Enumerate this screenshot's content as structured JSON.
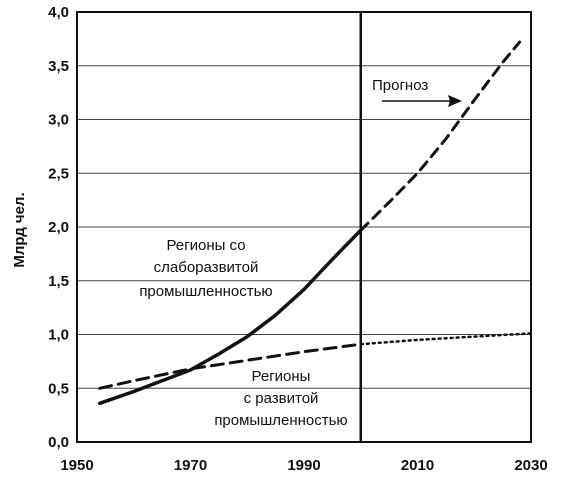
{
  "chart_data": {
    "type": "line",
    "title": "",
    "xlabel": "",
    "ylabel": "Млрд чел.",
    "xlim": [
      1950,
      2030
    ],
    "ylim": [
      0,
      4.0
    ],
    "x_ticks": [
      1950,
      1970,
      1990,
      2010,
      2030
    ],
    "y_ticks": [
      0,
      0.5,
      1.0,
      1.5,
      2.0,
      2.5,
      3.0,
      3.5,
      4.0
    ],
    "y_tick_labels": [
      "0,0",
      "0,5",
      "1,0",
      "1,5",
      "2,0",
      "2,5",
      "3,0",
      "3,5",
      "4,0"
    ],
    "grid": "horizontal",
    "forecast_start": 2000,
    "forecast_label": "Прогноз",
    "series": [
      {
        "name_lines": [
          "Регионы со",
          "слаборазвитой",
          "промышленностью"
        ],
        "style": "solid",
        "x": [
          1954,
          1960,
          1965,
          1970,
          1975,
          1980,
          1985,
          1990,
          1995,
          2000
        ],
        "y": [
          0.36,
          0.47,
          0.57,
          0.67,
          0.82,
          0.98,
          1.18,
          1.42,
          1.7,
          1.97
        ]
      },
      {
        "name_lines": [
          "Регионы со",
          "слаборазвитой",
          "промышленностью"
        ],
        "style": "dashed-forecast",
        "x": [
          2000,
          2005,
          2010,
          2015,
          2020,
          2025,
          2028
        ],
        "y": [
          1.97,
          2.23,
          2.5,
          2.82,
          3.18,
          3.53,
          3.72
        ]
      },
      {
        "name_lines": [
          "Регионы",
          "с развитой",
          "промышленностью"
        ],
        "style": "dashed",
        "x": [
          1954,
          1960,
          1970,
          1980,
          1990,
          2000
        ],
        "y": [
          0.5,
          0.57,
          0.68,
          0.76,
          0.84,
          0.91
        ]
      },
      {
        "name_lines": [
          "Регионы",
          "с развитой",
          "промышленностью"
        ],
        "style": "dotted-forecast",
        "x": [
          2000,
          2010,
          2020,
          2030
        ],
        "y": [
          0.91,
          0.95,
          0.98,
          1.01
        ]
      }
    ]
  }
}
